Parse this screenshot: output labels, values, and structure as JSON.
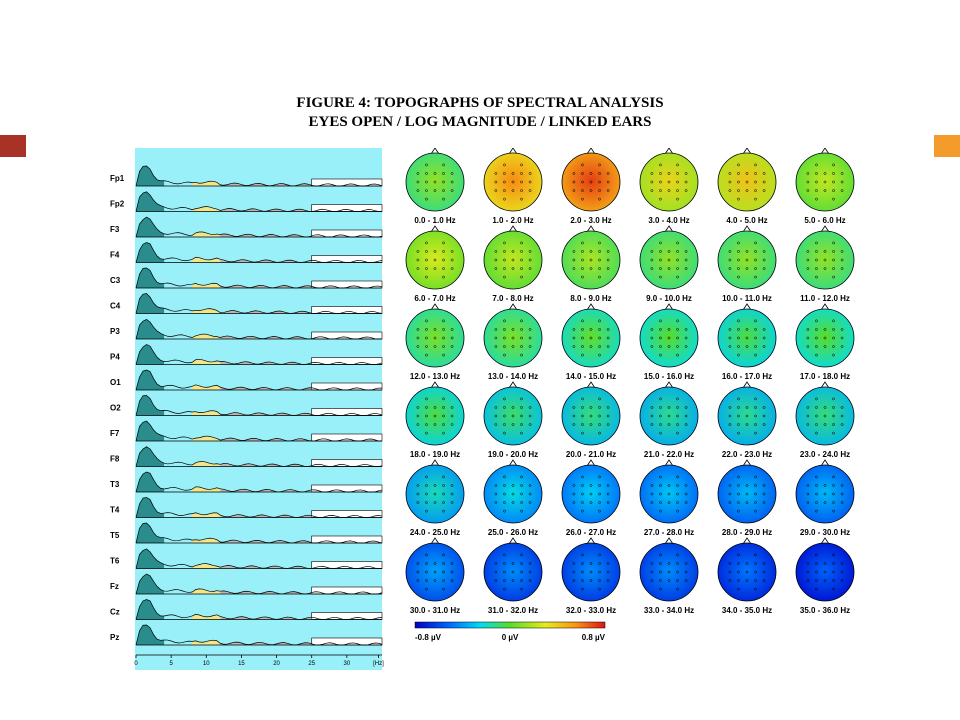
{
  "figure": {
    "title_line1": "FIGURE 4: TOPOGRAPHS OF SPECTRAL ANALYSIS",
    "title_line2": "EYES OPEN / LOG MAGNITUDE / LINKED EARS"
  },
  "colors": {
    "accent_left": "#a93226",
    "accent_right": "#f39c2b",
    "panel_background": "#99f0f8",
    "delta_fill": "#2a8c8c",
    "alpha_fill": "#f2e68a",
    "beta_fill": "#b8b8b8"
  },
  "chart_data": [
    {
      "type": "line",
      "description_channels": "spectral power per channel",
      "channels": [
        "Fp1",
        "Fp2",
        "F3",
        "F4",
        "C3",
        "C4",
        "P3",
        "P4",
        "O1",
        "O2",
        "F7",
        "F8",
        "T3",
        "T4",
        "T5",
        "T6",
        "Fz",
        "Cz",
        "Pz"
      ],
      "x_ticks": [
        "0",
        "5",
        "10",
        "15",
        "20",
        "25",
        "30",
        "[Hz]"
      ],
      "xlim": [
        0,
        35
      ],
      "x_unit": "[Hz]"
    },
    {
      "type": "heatmap",
      "band_labels": [
        "0.0 - 1.0 Hz",
        "1.0 - 2.0 Hz",
        "2.0 - 3.0 Hz",
        "3.0 - 4.0 Hz",
        "4.0 - 5.0 Hz",
        "5.0 - 6.0 Hz",
        "6.0 - 7.0 Hz",
        "7.0 - 8.0 Hz",
        "8.0 - 9.0 Hz",
        "9.0 - 10.0 Hz",
        "10.0 - 11.0 Hz",
        "11.0 - 12.0 Hz",
        "12.0 - 13.0 Hz",
        "13.0 - 14.0 Hz",
        "14.0 - 15.0 Hz",
        "15.0 - 16.0 Hz",
        "16.0 - 17.0 Hz",
        "17.0 - 18.0 Hz",
        "18.0 - 19.0 Hz",
        "19.0 - 20.0 Hz",
        "20.0 - 21.0 Hz",
        "21.0 - 22.0 Hz",
        "22.0 - 23.0 Hz",
        "23.0 - 24.0 Hz",
        "24.0 - 25.0 Hz",
        "25.0 - 26.0 Hz",
        "26.0 - 27.0 Hz",
        "27.0 - 28.0 Hz",
        "28.0 - 29.0 Hz",
        "29.0 - 30.0 Hz",
        "30.0 - 31.0 Hz",
        "31.0 - 32.0 Hz",
        "32.0 - 33.0 Hz",
        "33.0 - 34.0 Hz",
        "34.0 - 35.0 Hz",
        "35.0 - 36.0 Hz"
      ],
      "band_values_uV": [
        0.0,
        0.45,
        0.6,
        0.25,
        0.3,
        0.1,
        0.15,
        0.1,
        0.05,
        0.0,
        0.0,
        0.0,
        -0.05,
        -0.05,
        -0.1,
        -0.12,
        -0.15,
        -0.12,
        -0.15,
        -0.2,
        -0.22,
        -0.25,
        -0.25,
        -0.22,
        -0.3,
        -0.35,
        -0.4,
        -0.42,
        -0.45,
        -0.45,
        -0.5,
        -0.55,
        -0.55,
        -0.55,
        -0.6,
        -0.65
      ],
      "colorbar": {
        "min_label": "-0.8 µV",
        "mid_label": "0 µV",
        "max_label": "0.8 µV",
        "range": [
          -0.8,
          0.8
        ]
      }
    }
  ]
}
